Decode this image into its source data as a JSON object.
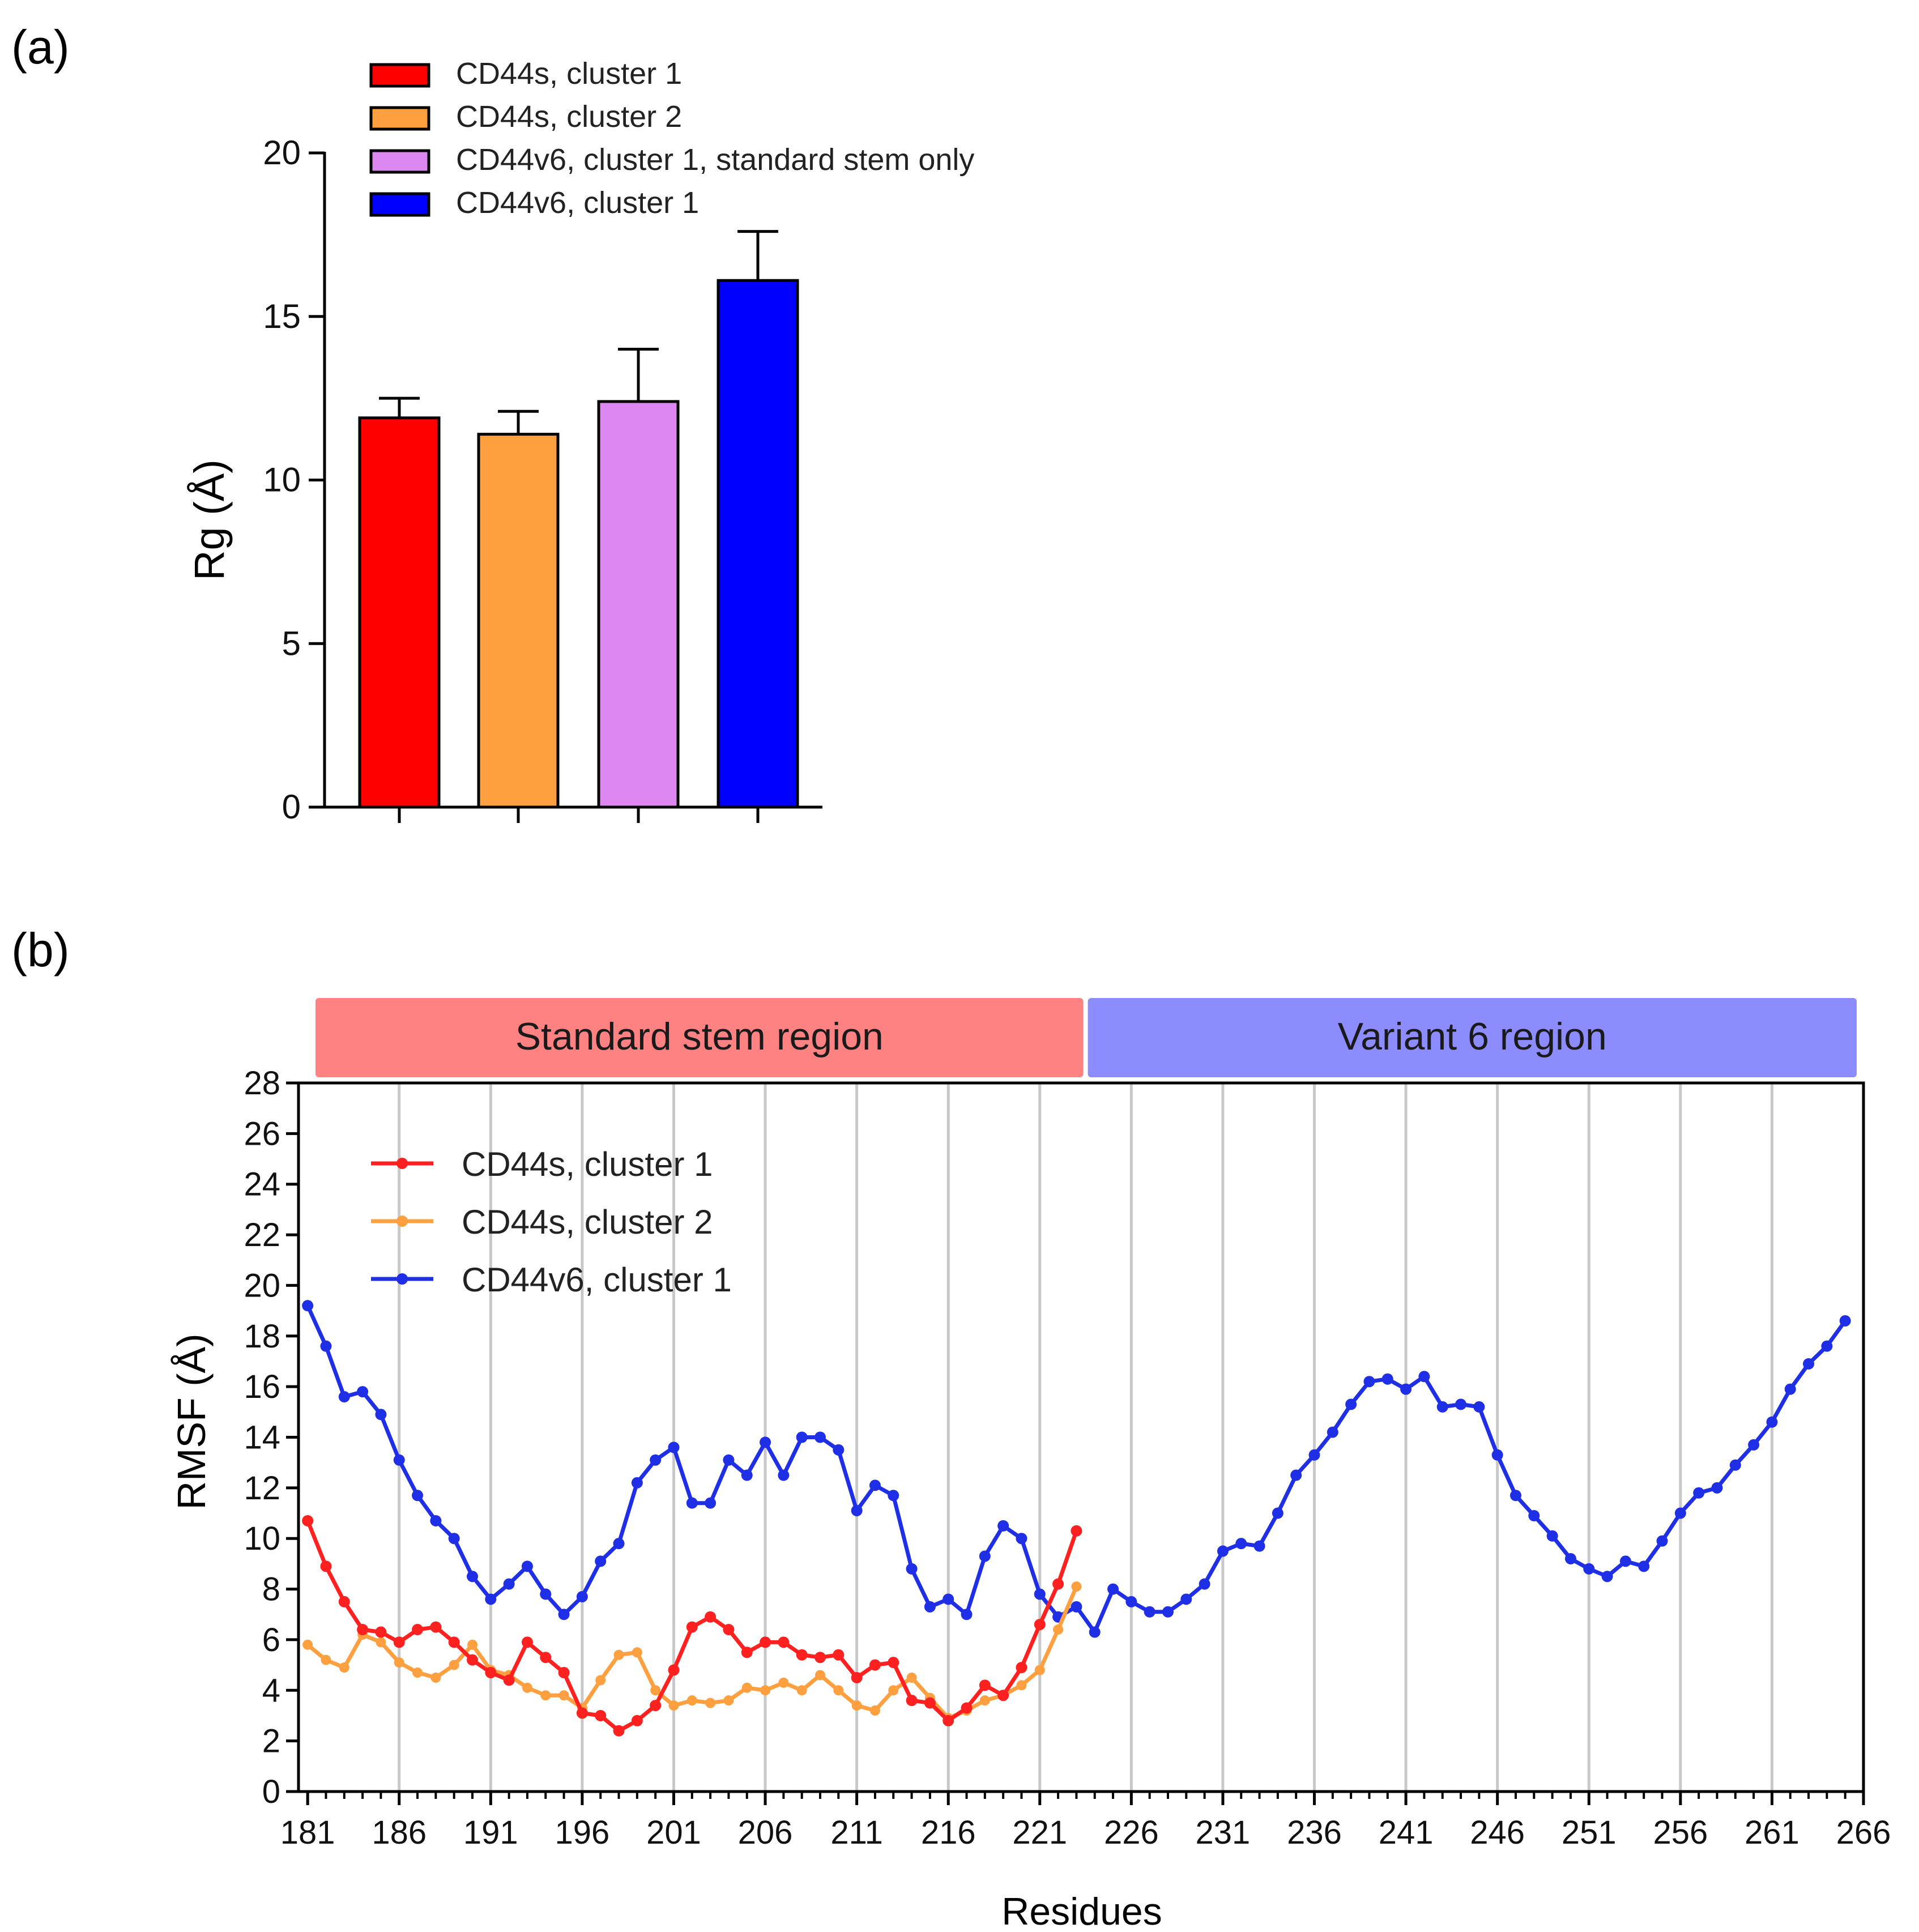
{
  "panels": {
    "a_label": "(a)",
    "b_label": "(b)"
  },
  "colors": {
    "cd44s_c1": "#ff0000",
    "cd44s_c2": "#ffa040",
    "cd44v6_std": "#dd88f0",
    "cd44v6_c1": "#0000ff",
    "line_c1": "#ff2020",
    "line_c2": "#ffa040",
    "line_v6": "#1f2fe6",
    "region_std": "#ff8282",
    "region_var": "#8c8cff"
  },
  "chart_data": [
    {
      "type": "bar",
      "title": "",
      "ylabel": "Rg (Å)",
      "xlabel": "",
      "ylim": [
        0,
        20
      ],
      "yticks": [
        0,
        5,
        10,
        15,
        20
      ],
      "legend_position": "top",
      "categories": [
        "CD44s, cluster 1",
        "CD44s, cluster 2",
        "CD44v6, cluster 1, standard stem only",
        "CD44v6, cluster 1"
      ],
      "values": [
        11.9,
        11.4,
        12.4,
        16.1
      ],
      "errors": [
        0.6,
        0.7,
        1.6,
        1.5
      ]
    },
    {
      "type": "line",
      "title": "",
      "ylabel": "RMSF (Å)",
      "xlabel": "Residues",
      "ylim": [
        0,
        28
      ],
      "xlim": [
        180.5,
        266
      ],
      "yticks": [
        0,
        2,
        4,
        6,
        8,
        10,
        12,
        14,
        16,
        18,
        20,
        22,
        24,
        26,
        28
      ],
      "xticks": [
        181,
        186,
        191,
        196,
        201,
        206,
        211,
        216,
        221,
        226,
        231,
        236,
        241,
        246,
        251,
        256,
        261,
        266
      ],
      "legend_position": "top-left",
      "regions": [
        {
          "label": "Standard stem region",
          "start": 181,
          "end": 223.5
        },
        {
          "label": "Variant 6 region",
          "start": 223.5,
          "end": 266
        }
      ],
      "series": [
        {
          "name": "CD44s, cluster 1",
          "x_start": 181,
          "values": [
            10.7,
            8.9,
            7.5,
            6.4,
            6.3,
            5.9,
            6.4,
            6.5,
            5.9,
            5.2,
            4.7,
            4.4,
            5.9,
            5.3,
            4.7,
            3.1,
            3.0,
            2.4,
            2.8,
            3.4,
            4.8,
            6.5,
            6.9,
            6.4,
            5.5,
            5.9,
            5.9,
            5.4,
            5.3,
            5.4,
            4.5,
            5.0,
            5.1,
            3.6,
            3.5,
            2.8,
            3.3,
            4.2,
            3.8,
            4.9,
            6.6,
            8.2,
            10.3
          ]
        },
        {
          "name": "CD44s, cluster 2",
          "x_start": 181,
          "values": [
            5.8,
            5.2,
            4.9,
            6.2,
            5.9,
            5.1,
            4.7,
            4.5,
            5.0,
            5.8,
            4.8,
            4.6,
            4.1,
            3.8,
            3.8,
            3.3,
            4.4,
            5.4,
            5.5,
            4.0,
            3.4,
            3.6,
            3.5,
            3.6,
            4.1,
            4.0,
            4.3,
            4.0,
            4.6,
            4.0,
            3.4,
            3.2,
            4.0,
            4.5,
            3.7,
            2.9,
            3.2,
            3.6,
            3.8,
            4.2,
            4.8,
            6.4,
            8.1
          ]
        },
        {
          "name": "CD44v6, cluster 1",
          "x_start": 181,
          "values": [
            19.2,
            17.6,
            15.6,
            15.8,
            14.9,
            13.1,
            11.7,
            10.7,
            10.0,
            8.5,
            7.6,
            8.2,
            8.9,
            7.8,
            7.0,
            7.7,
            9.1,
            9.8,
            12.2,
            13.1,
            13.6,
            11.4,
            11.4,
            13.1,
            12.5,
            13.8,
            12.5,
            14.0,
            14.0,
            13.5,
            11.1,
            12.1,
            11.7,
            8.8,
            7.3,
            7.6,
            7.0,
            9.3,
            10.5,
            10.0,
            7.8,
            6.9,
            7.3,
            6.3,
            8.0,
            7.5,
            7.1,
            7.1,
            7.6,
            8.2,
            9.5,
            9.8,
            9.7,
            11.0,
            12.5,
            13.3,
            14.2,
            15.3,
            16.2,
            16.3,
            15.9,
            16.4,
            15.2,
            15.3,
            15.2,
            13.3,
            11.7,
            10.9,
            10.1,
            9.2,
            8.8,
            8.5,
            9.1,
            8.9,
            9.9,
            11.0,
            11.8,
            12.0,
            12.9,
            13.7,
            14.6,
            15.9,
            16.9,
            17.6,
            18.6
          ]
        }
      ]
    }
  ]
}
